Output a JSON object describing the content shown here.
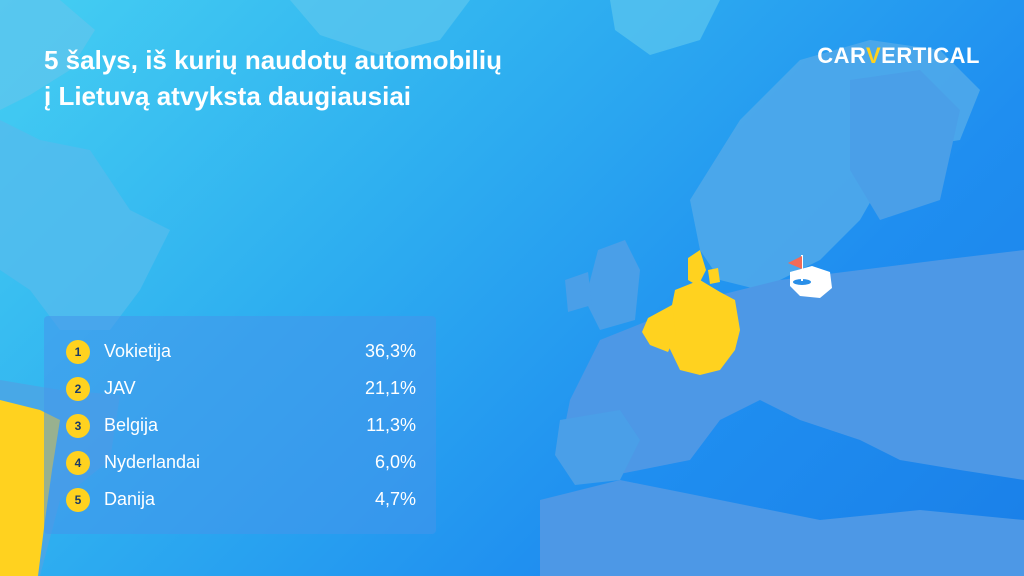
{
  "title_line1": "5 šalys, iš kurių naudotų automobilių",
  "title_line2": "į Lietuvą atvyksta daugiausiai",
  "logo": {
    "part1": "CAR",
    "part2": "V",
    "part3": "ERTICAL"
  },
  "ranking": [
    {
      "rank": "1",
      "country": "Vokietija",
      "percent": "36,3%"
    },
    {
      "rank": "2",
      "country": "JAV",
      "percent": "21,1%"
    },
    {
      "rank": "3",
      "country": "Belgija",
      "percent": "11,3%"
    },
    {
      "rank": "4",
      "country": "Nyderlandai",
      "percent": "6,0%"
    },
    {
      "rank": "5",
      "country": "Danija",
      "percent": "4,7%"
    }
  ],
  "colors": {
    "highlight": "#ffd21f",
    "land": "#5aa6ea",
    "lithuania": "#ffffff",
    "flag": "#f26b57"
  }
}
